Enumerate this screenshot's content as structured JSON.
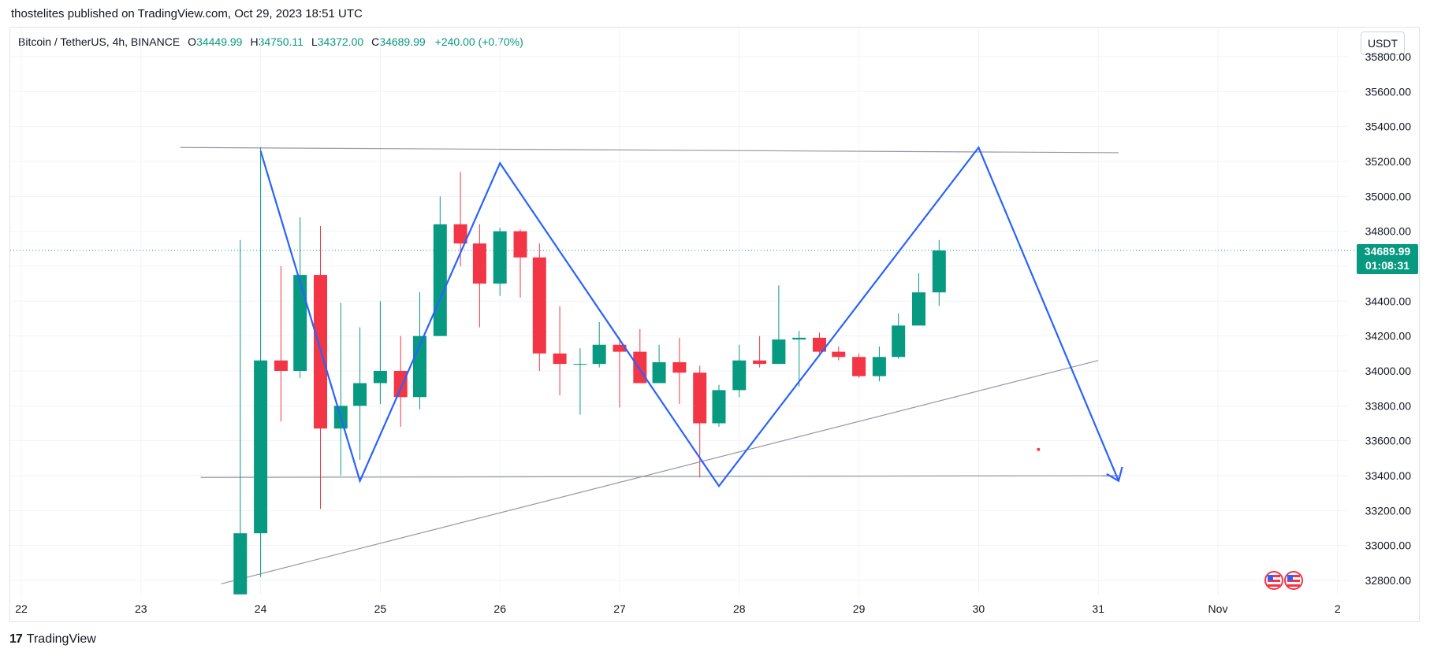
{
  "header": {
    "publisher_line": "thostelites published on TradingView.com, Oct 29, 2023 18:51 UTC"
  },
  "legend": {
    "symbol": "Bitcoin / TetherUS, 4h, BINANCE",
    "open_label": "O",
    "open": "34449.99",
    "high_label": "H",
    "high": "34750.11",
    "low_label": "L",
    "low": "34372.00",
    "close_label": "C",
    "close": "34689.99",
    "change": "+240.00 (+0.70%)"
  },
  "currency_button": "USDT",
  "price_badge": {
    "price": "34689.99",
    "countdown": "01:08:31"
  },
  "footer": {
    "brand": "TradingView"
  },
  "colors": {
    "up": "#089981",
    "down": "#f23645",
    "drawing": "#2962ff",
    "trendline": "#9598a1",
    "grid": "#f0f3fa"
  },
  "chart_data": {
    "type": "candlestick",
    "interval": "4h",
    "x_tick_labels": [
      "22",
      "23",
      "24",
      "25",
      "26",
      "27",
      "28",
      "29",
      "30",
      "31",
      "Nov",
      "2"
    ],
    "y_tick_labels": [
      "35800.00",
      "35600.00",
      "35400.00",
      "35200.00",
      "35000.00",
      "34800.00",
      "34600.00",
      "34400.00",
      "34200.00",
      "34000.00",
      "33800.00",
      "33600.00",
      "33400.00",
      "33200.00",
      "33000.00",
      "32800.00"
    ],
    "ylim": [
      32730,
      35900
    ],
    "grid": true,
    "candles": [
      {
        "t": 23.83,
        "o": 32720,
        "h": 34750,
        "l": 32720,
        "c": 33070
      },
      {
        "t": 24.0,
        "o": 33070,
        "h": 35280,
        "l": 32820,
        "c": 34060
      },
      {
        "t": 24.17,
        "o": 34060,
        "h": 34600,
        "l": 33710,
        "c": 34000
      },
      {
        "t": 24.33,
        "o": 34000,
        "h": 34880,
        "l": 33960,
        "c": 34550
      },
      {
        "t": 24.5,
        "o": 34550,
        "h": 34830,
        "l": 33210,
        "c": 33670
      },
      {
        "t": 24.67,
        "o": 33670,
        "h": 34390,
        "l": 33400,
        "c": 33800
      },
      {
        "t": 24.83,
        "o": 33800,
        "h": 34250,
        "l": 33490,
        "c": 33930
      },
      {
        "t": 25.0,
        "o": 33930,
        "h": 34400,
        "l": 33810,
        "c": 34000
      },
      {
        "t": 25.17,
        "o": 34000,
        "h": 34200,
        "l": 33680,
        "c": 33850
      },
      {
        "t": 25.33,
        "o": 33850,
        "h": 34450,
        "l": 33780,
        "c": 34200
      },
      {
        "t": 25.5,
        "o": 34200,
        "h": 35000,
        "l": 34200,
        "c": 34840
      },
      {
        "t": 25.67,
        "o": 34840,
        "h": 35140,
        "l": 34600,
        "c": 34730
      },
      {
        "t": 25.83,
        "o": 34730,
        "h": 34840,
        "l": 34250,
        "c": 34500
      },
      {
        "t": 26.0,
        "o": 34500,
        "h": 34820,
        "l": 34430,
        "c": 34800
      },
      {
        "t": 26.17,
        "o": 34800,
        "h": 34810,
        "l": 34420,
        "c": 34650
      },
      {
        "t": 26.33,
        "o": 34650,
        "h": 34730,
        "l": 34000,
        "c": 34100
      },
      {
        "t": 26.5,
        "o": 34100,
        "h": 34370,
        "l": 33860,
        "c": 34040
      },
      {
        "t": 26.67,
        "o": 34040,
        "h": 34130,
        "l": 33750,
        "c": 34040
      },
      {
        "t": 26.83,
        "o": 34040,
        "h": 34280,
        "l": 34020,
        "c": 34150
      },
      {
        "t": 27.0,
        "o": 34150,
        "h": 34190,
        "l": 33790,
        "c": 34110
      },
      {
        "t": 27.17,
        "o": 34110,
        "h": 34240,
        "l": 33940,
        "c": 33930
      },
      {
        "t": 27.33,
        "o": 33930,
        "h": 34150,
        "l": 33930,
        "c": 34050
      },
      {
        "t": 27.5,
        "o": 34050,
        "h": 34190,
        "l": 33810,
        "c": 33990
      },
      {
        "t": 27.67,
        "o": 33990,
        "h": 34030,
        "l": 33390,
        "c": 33700
      },
      {
        "t": 27.83,
        "o": 33700,
        "h": 33920,
        "l": 33680,
        "c": 33890
      },
      {
        "t": 28.0,
        "o": 33890,
        "h": 34150,
        "l": 33850,
        "c": 34060
      },
      {
        "t": 28.17,
        "o": 34060,
        "h": 34200,
        "l": 34020,
        "c": 34040
      },
      {
        "t": 28.33,
        "o": 34040,
        "h": 34490,
        "l": 34040,
        "c": 34180
      },
      {
        "t": 28.5,
        "o": 34180,
        "h": 34230,
        "l": 33910,
        "c": 34190
      },
      {
        "t": 28.67,
        "o": 34190,
        "h": 34220,
        "l": 34100,
        "c": 34110
      },
      {
        "t": 28.83,
        "o": 34110,
        "h": 34140,
        "l": 34060,
        "c": 34080
      },
      {
        "t": 29.0,
        "o": 34080,
        "h": 34100,
        "l": 33960,
        "c": 33970
      },
      {
        "t": 29.17,
        "o": 33970,
        "h": 34140,
        "l": 33940,
        "c": 34080
      },
      {
        "t": 29.33,
        "o": 34080,
        "h": 34330,
        "l": 34070,
        "c": 34260
      },
      {
        "t": 29.5,
        "o": 34260,
        "h": 34560,
        "l": 34260,
        "c": 34450
      },
      {
        "t": 29.67,
        "o": 34449.99,
        "h": 34750.11,
        "l": 34372.0,
        "c": 34689.99
      }
    ],
    "current_price": 34689.99,
    "drawings": {
      "zigzag_path": [
        {
          "t": 24.0,
          "p": 35260
        },
        {
          "t": 24.83,
          "p": 33370
        },
        {
          "t": 26.0,
          "p": 35190
        },
        {
          "t": 27.83,
          "p": 33340
        },
        {
          "t": 30.0,
          "p": 35280
        },
        {
          "t": 31.17,
          "p": 33370
        }
      ],
      "arrow_head": [
        {
          "t": 31.07,
          "p": 33410
        },
        {
          "t": 31.17,
          "p": 33370
        },
        {
          "t": 31.2,
          "p": 33450
        }
      ],
      "resistance_line": [
        {
          "t": 23.33,
          "p": 35280
        },
        {
          "t": 31.17,
          "p": 35250
        }
      ],
      "support_line": [
        {
          "t": 23.5,
          "p": 33390
        },
        {
          "t": 31.17,
          "p": 33400
        }
      ],
      "rising_line": [
        {
          "t": 23.67,
          "p": 32780
        },
        {
          "t": 31.0,
          "p": 34060
        }
      ],
      "marker_dot": {
        "t": 30.5,
        "p": 33550
      }
    }
  }
}
